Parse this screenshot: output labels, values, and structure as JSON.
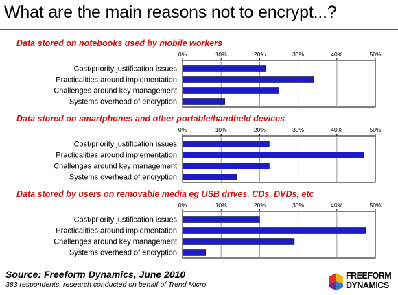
{
  "title": "What are the main reasons not to encrypt...?",
  "colors": {
    "bar": "#1c1cc8",
    "section_title": "#d01010",
    "title_rule": "#3a49c8"
  },
  "chart_data": [
    {
      "type": "bar",
      "orientation": "horizontal",
      "title": "Data stored on notebooks used by mobile workers",
      "categories": [
        "Cost/priority justification issues",
        "Practicalities around implementation",
        "Challenges around key management",
        "Systems overhead of encryption"
      ],
      "values": [
        21.5,
        34,
        25,
        11
      ],
      "xlim": [
        0,
        50
      ],
      "xticks": [
        "0%",
        "10%",
        "20%",
        "30%",
        "40%",
        "50%"
      ],
      "legend": "none"
    },
    {
      "type": "bar",
      "orientation": "horizontal",
      "title": "Data stored on smartphones and other portable/handheld devices",
      "categories": [
        "Cost/priority justification issues",
        "Practicalities around implementation",
        "Challenges around key management",
        "Systems overhead of encryption"
      ],
      "values": [
        22.5,
        47,
        22.5,
        14
      ],
      "xlim": [
        0,
        50
      ],
      "xticks": [
        "0%",
        "10%",
        "20%",
        "30%",
        "40%",
        "50%"
      ],
      "legend": "none"
    },
    {
      "type": "bar",
      "orientation": "horizontal",
      "title": "Data stored by users on removable media eg USB drives, CDs, DVDs, etc",
      "categories": [
        "Cost/priority justification issues",
        "Practicalities around implementation",
        "Challenges around key management",
        "Systems overhead of encryption"
      ],
      "values": [
        20,
        47.5,
        29,
        6
      ],
      "xlim": [
        0,
        50
      ],
      "xticks": [
        "0%",
        "10%",
        "20%",
        "30%",
        "40%",
        "50%"
      ],
      "legend": "none"
    }
  ],
  "source": {
    "main": "Source: Freeform Dynamics, June 2010",
    "sub": "383 respondents, research conducted on behalf of Trend Micro"
  },
  "logo": {
    "line1": "FREEFORM",
    "line2": "DYNAMICS"
  }
}
